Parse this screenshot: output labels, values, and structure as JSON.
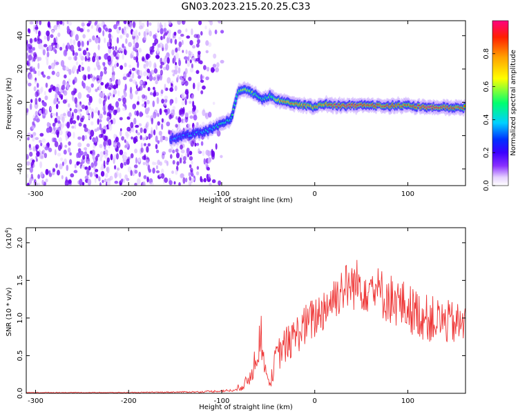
{
  "title": "GN03.2023.215.20.25.C33",
  "colors": {
    "snr_line": "#ee3333",
    "spectrogram_speckle": "#6a00ee",
    "colormap": [
      "#ffffff",
      "#e6d2ff",
      "#8a30ff",
      "#3c00ff",
      "#0030ff",
      "#00d0ff",
      "#00ff70",
      "#ffff00",
      "#ffa000",
      "#ff2000",
      "#ff0080"
    ]
  },
  "chart_data": [
    {
      "type": "heatmap",
      "name": "spectrogram",
      "xlabel": "Height of straight line (km)",
      "ylabel": "Frequency (Hz)",
      "xlim": [
        -310,
        162
      ],
      "ylim": [
        -50,
        49
      ],
      "x_ticks": [
        -300,
        -200,
        -100,
        0,
        100
      ],
      "y_ticks": [
        -40,
        -20,
        0,
        20,
        40
      ],
      "x_tick_labels": [
        "-300",
        "-200",
        "-100",
        "0",
        "100"
      ],
      "y_tick_labels": [
        "-40",
        "-20",
        "0",
        "20",
        "40"
      ],
      "colorbar": {
        "label": "Normalized spectral amplitude",
        "range": [
          0.0,
          1.0
        ],
        "ticks": [
          0.0,
          0.2,
          0.4,
          0.6,
          0.8
        ],
        "tick_labels": [
          "0.0",
          "0.2",
          "0.4",
          "0.6",
          "0.8"
        ]
      },
      "noise_region_x": [
        -310,
        -105
      ],
      "signal_track": {
        "x": [
          -155,
          -130,
          -115,
          -100,
          -90,
          -82,
          -75,
          -68,
          -62,
          -58,
          -52,
          -48,
          -44,
          -40,
          -30,
          -20,
          -10,
          0,
          10,
          20,
          40,
          60,
          80,
          100,
          120,
          140,
          162
        ],
        "freq_hz": [
          -22,
          -19,
          -17,
          -13,
          -10,
          7,
          8,
          6,
          4,
          2,
          3,
          4,
          2,
          1,
          0,
          -1,
          -2,
          -3,
          -1,
          -2,
          -2,
          -2,
          -2,
          -2,
          -3,
          -3,
          -3
        ],
        "amplitude": [
          0.3,
          0.35,
          0.4,
          0.45,
          0.45,
          0.55,
          0.6,
          0.55,
          0.5,
          0.45,
          0.5,
          0.55,
          0.55,
          0.75,
          0.8,
          0.85,
          0.8,
          0.8,
          0.85,
          0.9,
          0.95,
          0.9,
          0.9,
          0.85,
          0.95,
          0.9,
          0.85
        ]
      }
    },
    {
      "type": "line",
      "name": "snr",
      "xlabel": "Height of straight line (km)",
      "ylabel": "SNR (10 * v/v)",
      "y_multiplier_label": "(x10",
      "y_multiplier_exp": "4",
      "y_multiplier_close": ")",
      "xlim": [
        -310,
        162
      ],
      "ylim": [
        0,
        2.2
      ],
      "x_ticks": [
        -300,
        -200,
        -100,
        0,
        100
      ],
      "y_ticks": [
        0.0,
        0.5,
        1.0,
        1.5,
        2.0
      ],
      "x_tick_labels": [
        "-300",
        "-200",
        "-100",
        "0",
        "100"
      ],
      "y_tick_labels": [
        "0.0",
        "0.5",
        "1.0",
        "1.5",
        "2.0"
      ],
      "envelope": {
        "x": [
          -310,
          -200,
          -120,
          -85,
          -72,
          -65,
          -58,
          -53,
          -48,
          -42,
          -35,
          -25,
          -15,
          0,
          15,
          30,
          45,
          60,
          75,
          90,
          105,
          120,
          140,
          162
        ],
        "mean": [
          0.01,
          0.01,
          0.02,
          0.04,
          0.15,
          0.4,
          0.8,
          0.3,
          0.12,
          0.45,
          0.6,
          0.7,
          0.85,
          1.0,
          1.2,
          1.4,
          1.45,
          1.4,
          1.3,
          1.2,
          1.1,
          1.0,
          0.95,
          0.9
        ],
        "spread": [
          0.005,
          0.005,
          0.01,
          0.02,
          0.1,
          0.2,
          0.3,
          0.12,
          0.06,
          0.2,
          0.25,
          0.25,
          0.28,
          0.3,
          0.32,
          0.32,
          0.35,
          0.35,
          0.35,
          0.35,
          0.33,
          0.32,
          0.3,
          0.28
        ]
      }
    }
  ]
}
